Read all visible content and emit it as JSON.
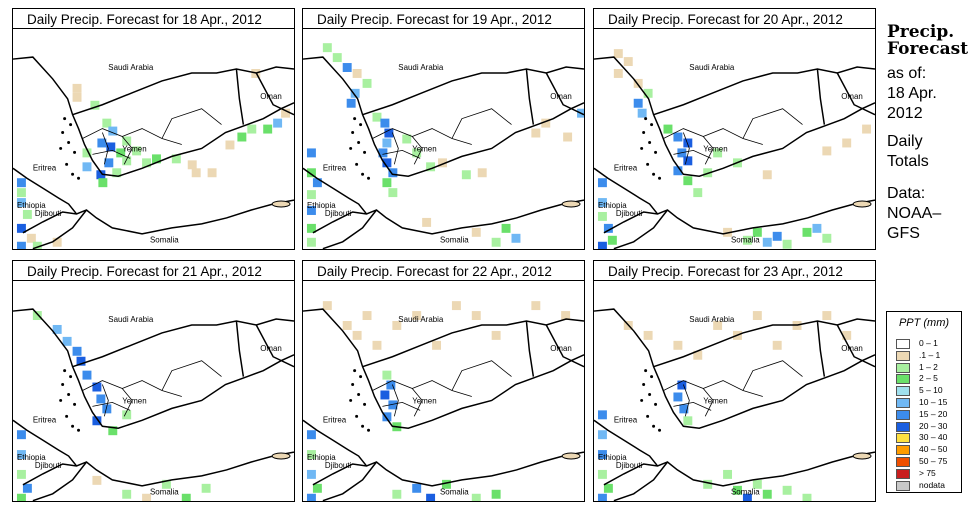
{
  "panels": [
    {
      "title": "Daily Precip. Forecast for  18 Apr., 2012"
    },
    {
      "title": "Daily Precip. Forecast for  19 Apr., 2012"
    },
    {
      "title": "Daily Precip. Forecast for  20 Apr., 2012"
    },
    {
      "title": "Daily Precip. Forecast for  21 Apr., 2012"
    },
    {
      "title": "Daily Precip. Forecast for  22 Apr., 2012"
    },
    {
      "title": "Daily Precip. Forecast for  23 Apr., 2012"
    }
  ],
  "map_labels": {
    "saudi": "Saudi Arabia",
    "oman": "Oman",
    "yemen": "Yemen",
    "eritrea": "Eritrea",
    "ethiopia": "Ethiopia",
    "djibouti": "Djibouti",
    "somalia": "Somalia"
  },
  "side": {
    "heading1": "Precip.",
    "heading2": "Forecast",
    "asof1": "as of:",
    "asof2": "18 Apr.",
    "asof3": "2012",
    "daily1": "Daily",
    "daily2": "Totals",
    "data1": "Data:",
    "data2": "NOAA–",
    "data3": "GFS"
  },
  "legend": {
    "title": "PPT (mm)",
    "items": [
      {
        "label": "0 – 1",
        "color": "#ffffff"
      },
      {
        "label": ".1 – 1",
        "color": "#ecd8b4"
      },
      {
        "label": "1 – 2",
        "color": "#a8f0a0"
      },
      {
        "label": "2 – 5",
        "color": "#6ae06a"
      },
      {
        "label": "5 – 10",
        "color": "#a0e0ee"
      },
      {
        "label": "10 – 15",
        "color": "#70b8f4"
      },
      {
        "label": "15 – 20",
        "color": "#3c8cec"
      },
      {
        "label": "20 – 30",
        "color": "#1a5ee0"
      },
      {
        "label": "30 – 40",
        "color": "#ffe040"
      },
      {
        "label": "40 – 50",
        "color": "#ff9c00"
      },
      {
        "label": "50 – 75",
        "color": "#f05000"
      },
      {
        "label": "> 75",
        "color": "#c81e1e"
      },
      {
        "label": "nodata",
        "color": "#c8c8c8"
      }
    ]
  }
}
